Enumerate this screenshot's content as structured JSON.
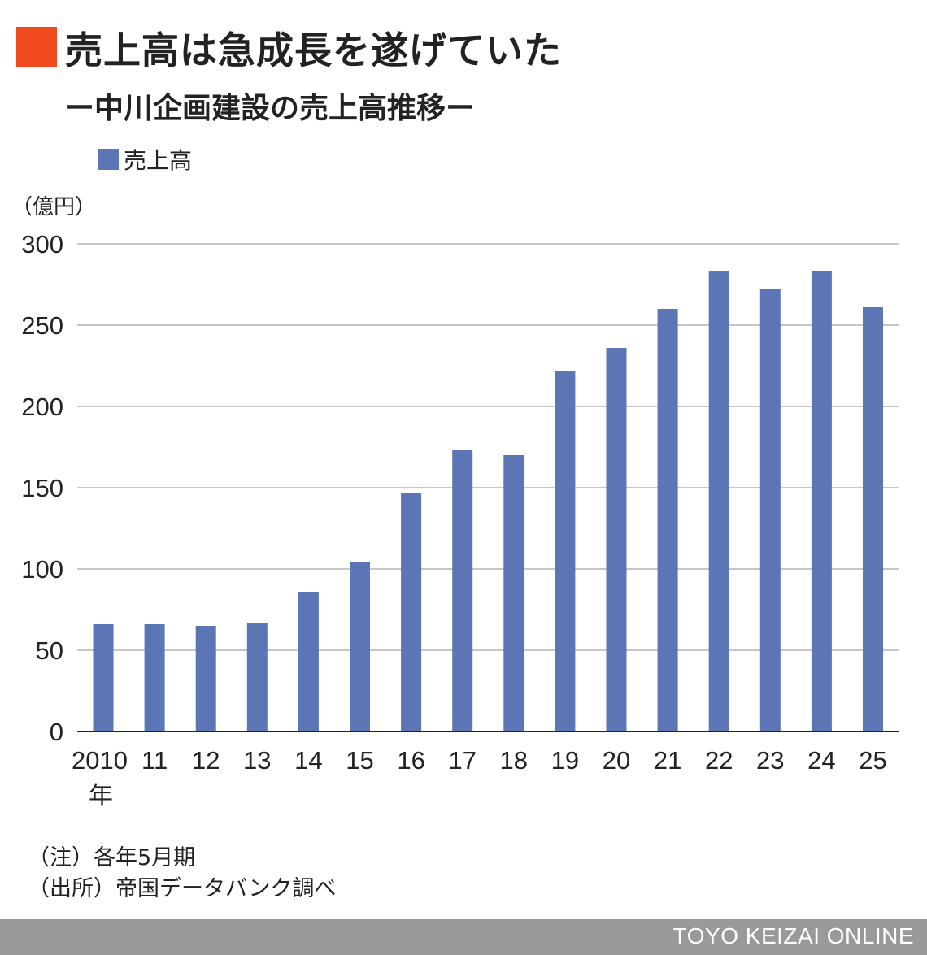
{
  "title": "売上高は急成長を遂げていた",
  "subtitle": "ー中川企画建設の売上高推移ー",
  "legend": {
    "label": "売上高"
  },
  "unit_label": "（億円）",
  "notes": [
    "（注）各年5月期",
    "（出所）帝国データバンク調べ"
  ],
  "footer": {
    "text": "TOYO KEIZAI ONLINE"
  },
  "colors": {
    "accent": "#f04a1e",
    "bar": "#5b75b5",
    "grid": "#b3b3b3",
    "axis": "#222222",
    "footer_bg": "#999999"
  },
  "chart_data": {
    "type": "bar",
    "categories": [
      "2010",
      "11",
      "12",
      "13",
      "14",
      "15",
      "16",
      "17",
      "18",
      "19",
      "20",
      "21",
      "22",
      "23",
      "24",
      "25"
    ],
    "first_category_suffix": "年",
    "series": [
      {
        "name": "売上高",
        "values": [
          66,
          66,
          65,
          67,
          86,
          104,
          147,
          173,
          170,
          222,
          236,
          260,
          283,
          272,
          283,
          261
        ]
      }
    ],
    "yticks": [
      0,
      50,
      100,
      150,
      200,
      250,
      300
    ],
    "ylim": [
      0,
      300
    ],
    "ylabel": "（億円）",
    "grid": true,
    "legend_position": "top-left"
  }
}
